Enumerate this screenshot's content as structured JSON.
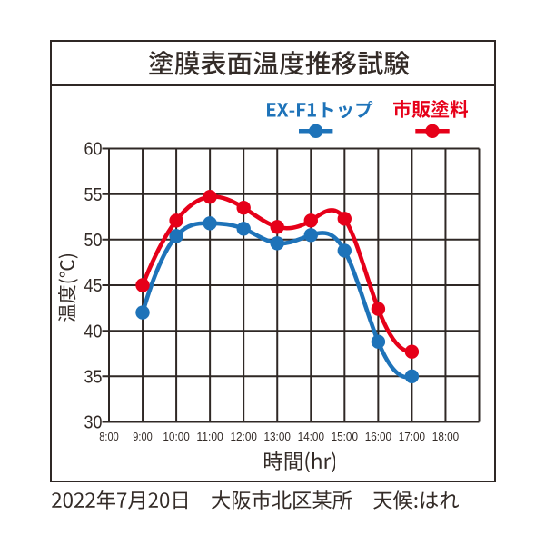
{
  "window": {
    "background": "#ffffff"
  },
  "title": "塗膜表面温度推移試験",
  "legend": {
    "items": [
      {
        "label": "EX-F1トップ",
        "color": "#1e73b9",
        "marker": "line-dot-icon"
      },
      {
        "label": "市販塗料",
        "color": "#e60019",
        "marker": "line-dot-icon"
      }
    ]
  },
  "chart_data": {
    "type": "line",
    "title": "塗膜表面温度推移試験",
    "xlabel": "時間(hr)",
    "ylabel": "温度(℃)",
    "ylim": [
      30,
      60
    ],
    "y_tick_step": 5,
    "y_ticks": [
      "30",
      "35",
      "40",
      "45",
      "50",
      "55",
      "60"
    ],
    "x_ticks": [
      "8:00",
      "9:00",
      "10:00",
      "11:00",
      "12:00",
      "13:00",
      "14:00",
      "15:00",
      "16:00",
      "17:00",
      "18:00"
    ],
    "grid": true,
    "legend_position": "top-right",
    "series": [
      {
        "name": "EX-F1トップ",
        "color": "#1e73b9",
        "x": [
          "9:00",
          "10:00",
          "11:00",
          "12:00",
          "13:00",
          "14:00",
          "15:00",
          "16:00",
          "17:00"
        ],
        "values": [
          42,
          50.4,
          51.8,
          51.2,
          49.6,
          50.5,
          48.8,
          38.8,
          35
        ]
      },
      {
        "name": "市販塗料",
        "color": "#e60019",
        "x": [
          "9:00",
          "10:00",
          "11:00",
          "12:00",
          "13:00",
          "14:00",
          "15:00",
          "16:00",
          "17:00"
        ],
        "values": [
          45,
          52.1,
          54.7,
          53.5,
          51.4,
          52.1,
          52.3,
          42.4,
          37.7
        ]
      }
    ]
  },
  "footer": "2022年7月20日　大阪市北区某所　天候:はれ",
  "colors": {
    "series_blue": "#1e73b9",
    "series_red": "#e60019",
    "grid": "#2f2825",
    "text": "#332b27"
  }
}
